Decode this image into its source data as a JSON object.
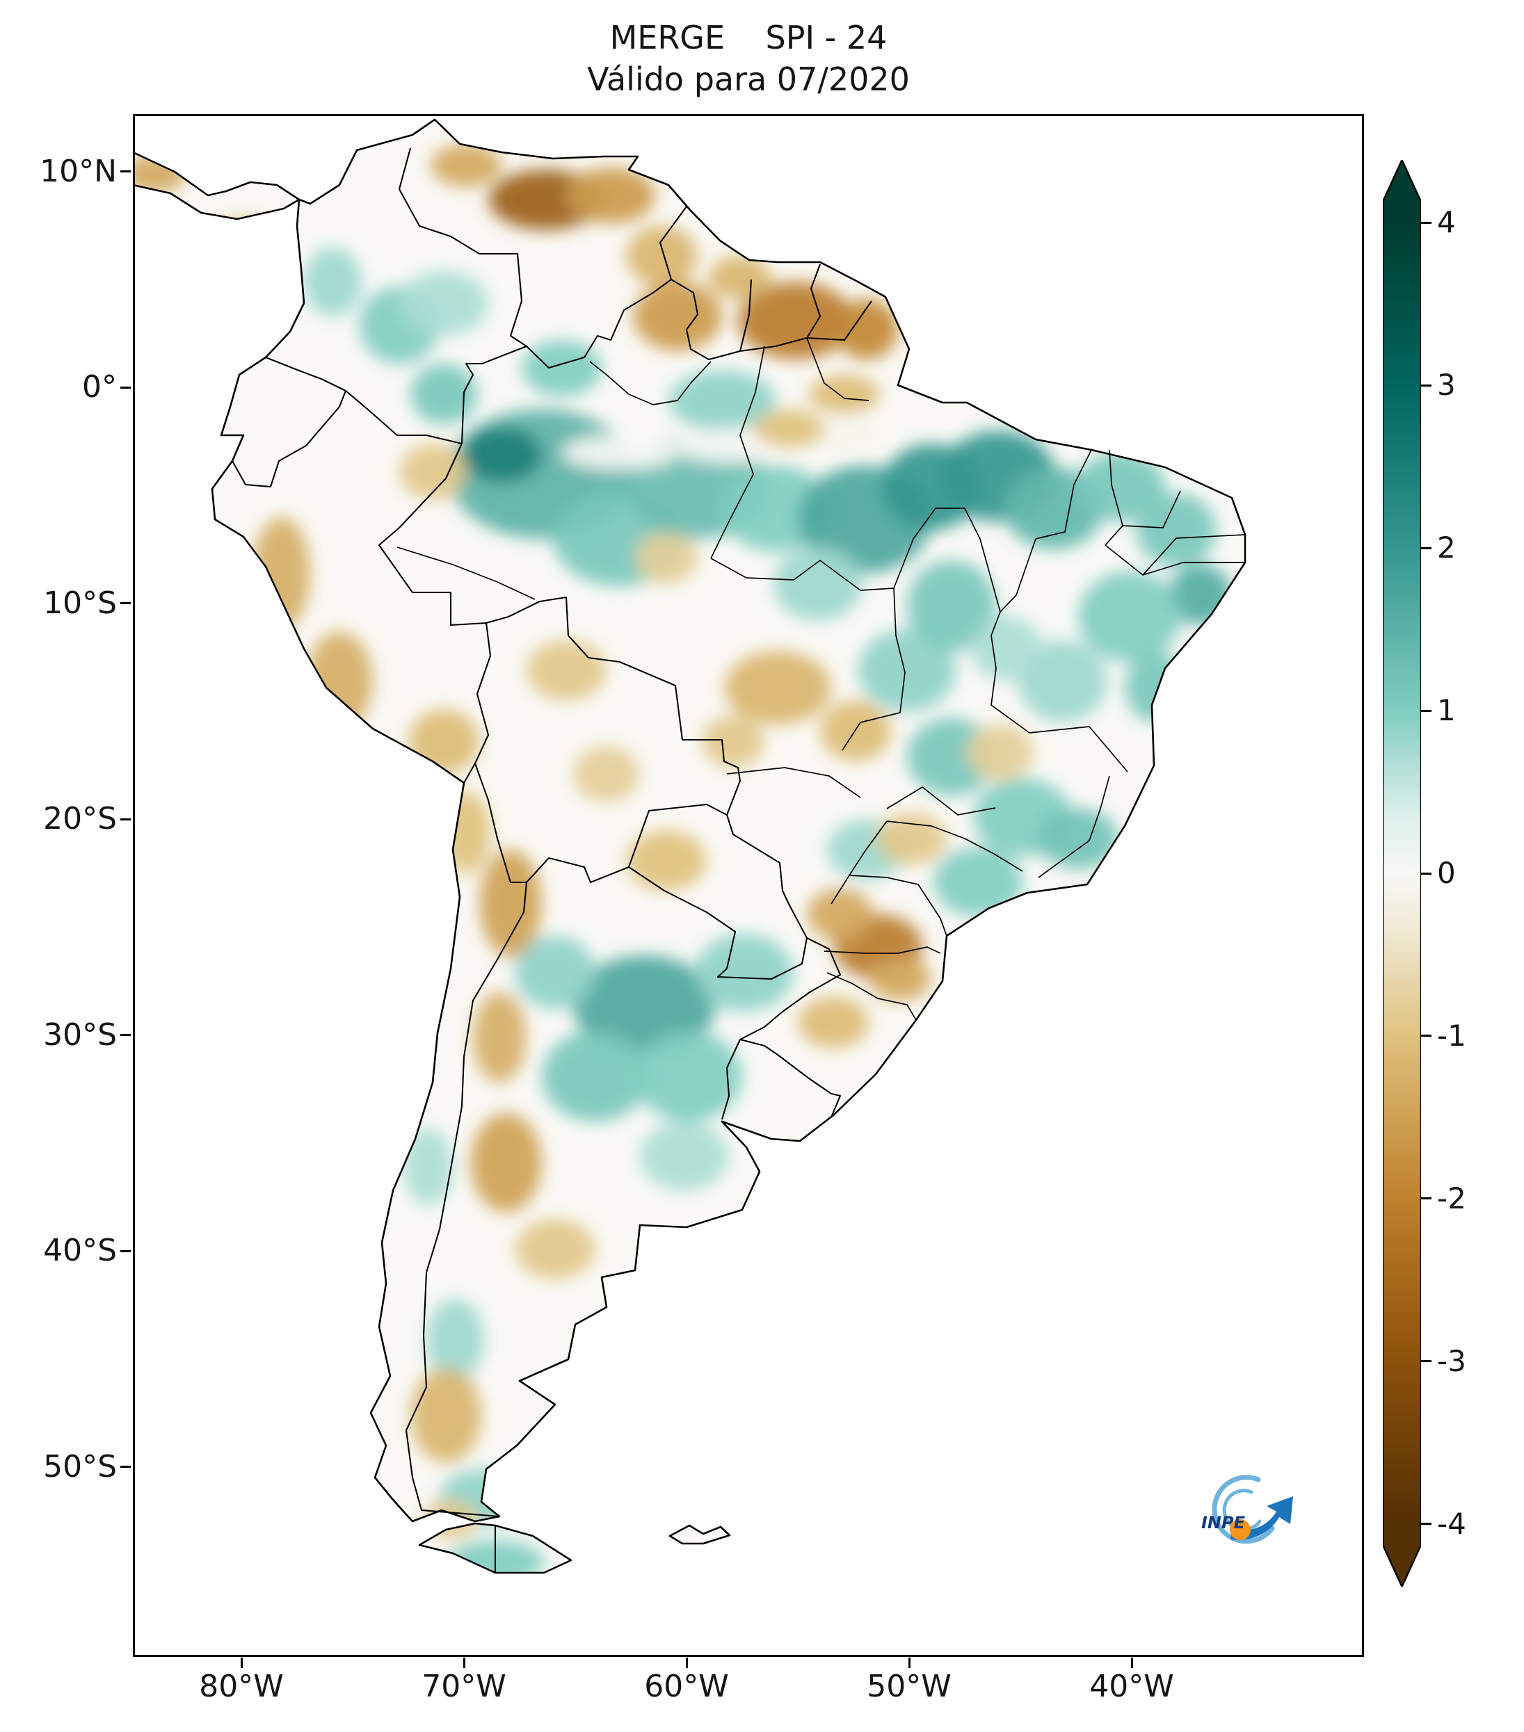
{
  "figure": {
    "title": "MERGE    SPI - 24",
    "subtitle": "Válido para 07/2020"
  },
  "axes": {
    "x_ticks": [
      {
        "label": "80°W",
        "lon": -80
      },
      {
        "label": "70°W",
        "lon": -70
      },
      {
        "label": "60°W",
        "lon": -60
      },
      {
        "label": "50°W",
        "lon": -50
      },
      {
        "label": "40°W",
        "lon": -40
      }
    ],
    "y_ticks": [
      {
        "label": "10°N",
        "lat": 10
      },
      {
        "label": "0°",
        "lat": 0
      },
      {
        "label": "10°S",
        "lat": -10
      },
      {
        "label": "20°S",
        "lat": -20
      },
      {
        "label": "30°S",
        "lat": -30
      },
      {
        "label": "40°S",
        "lat": -40
      },
      {
        "label": "50°S",
        "lat": -50
      }
    ]
  },
  "colorbar": {
    "ticks": [
      {
        "label": "4",
        "value": 4
      },
      {
        "label": "3",
        "value": 3
      },
      {
        "label": "2",
        "value": 2
      },
      {
        "label": "1",
        "value": 1
      },
      {
        "label": "0",
        "value": 0
      },
      {
        "label": "-1",
        "value": -1
      },
      {
        "label": "-2",
        "value": -2
      },
      {
        "label": "-3",
        "value": -3
      },
      {
        "label": "-4",
        "value": -4
      }
    ],
    "vmin": -4,
    "vmax": 4,
    "extend": "both",
    "colormap": "BrBG",
    "scale": [
      [
        -4,
        "#543005"
      ],
      [
        -3,
        "#8c510a"
      ],
      [
        -2,
        "#bf812d"
      ],
      [
        -1,
        "#dfc27d"
      ],
      [
        -0.35,
        "#f0e9d4"
      ],
      [
        0,
        "#f8f8f5"
      ],
      [
        0.35,
        "#def0ec"
      ],
      [
        1,
        "#80cdc1"
      ],
      [
        2,
        "#35978f"
      ],
      [
        3,
        "#01665e"
      ],
      [
        4,
        "#003c30"
      ]
    ]
  },
  "logo": {
    "text": "INPE"
  },
  "chart_data": {
    "type": "heatmap",
    "title": "MERGE    SPI - 24",
    "subtitle": "Válido para 07/2020",
    "product": "MERGE",
    "index": "SPI-24",
    "valid_for": "07/2020",
    "region": "South America",
    "x_axis": {
      "label": "",
      "tick_labels": [
        "80°W",
        "70°W",
        "60°W",
        "50°W",
        "40°W"
      ]
    },
    "y_axis": {
      "label": "",
      "tick_labels": [
        "10°N",
        "0°",
        "10°S",
        "20°S",
        "30°S",
        "40°S",
        "50°S"
      ]
    },
    "colorbar": {
      "ticks": [
        4,
        3,
        2,
        1,
        0,
        -1,
        -2,
        -3,
        -4
      ],
      "range": [
        -4,
        4
      ],
      "colormap": "BrBG",
      "extend": "both"
    },
    "anomalies": [
      {
        "lon": -66.5,
        "lat": -4.0,
        "rx": 4.2,
        "ry": 3.0,
        "spi": 1.5
      },
      {
        "lon": -68.3,
        "lat": -3.1,
        "rx": 1.8,
        "ry": 1.3,
        "spi": 2.5
      },
      {
        "lon": -70.9,
        "lat": -0.3,
        "rx": 1.5,
        "ry": 1.4,
        "spi": 1.1
      },
      {
        "lon": -63.0,
        "lat": -7.0,
        "rx": 3.0,
        "ry": 2.2,
        "spi": 1.1
      },
      {
        "lon": -59.5,
        "lat": -4.6,
        "rx": 3.2,
        "ry": 2.4,
        "spi": 1.3
      },
      {
        "lon": -56.0,
        "lat": -5.6,
        "rx": 2.4,
        "ry": 2.0,
        "spi": 1.0
      },
      {
        "lon": -52.0,
        "lat": -6.1,
        "rx": 3.0,
        "ry": 2.5,
        "spi": 1.7
      },
      {
        "lon": -49.0,
        "lat": -4.6,
        "rx": 2.2,
        "ry": 2.0,
        "spi": 2.0
      },
      {
        "lon": -46.0,
        "lat": -4.1,
        "rx": 2.6,
        "ry": 2.1,
        "spi": 2.0
      },
      {
        "lon": -43.5,
        "lat": -5.6,
        "rx": 2.2,
        "ry": 1.9,
        "spi": 1.4
      },
      {
        "lon": -40.5,
        "lat": -4.6,
        "rx": 2.0,
        "ry": 1.6,
        "spi": 1.1
      },
      {
        "lon": -38.0,
        "lat": -6.6,
        "rx": 1.8,
        "ry": 1.7,
        "spi": 1.1
      },
      {
        "lon": -36.9,
        "lat": -9.6,
        "rx": 1.4,
        "ry": 1.4,
        "spi": 1.6
      },
      {
        "lon": -40.1,
        "lat": -10.6,
        "rx": 2.3,
        "ry": 2.1,
        "spi": 1.0
      },
      {
        "lon": -43.1,
        "lat": -13.6,
        "rx": 2.0,
        "ry": 1.9,
        "spi": 0.8
      },
      {
        "lon": -38.9,
        "lat": -13.9,
        "rx": 1.4,
        "ry": 1.6,
        "spi": 1.1
      },
      {
        "lon": -50.1,
        "lat": -13.1,
        "rx": 2.2,
        "ry": 1.9,
        "spi": 0.9
      },
      {
        "lon": -48.1,
        "lat": -17.1,
        "rx": 2.0,
        "ry": 1.8,
        "spi": 1.1
      },
      {
        "lon": -44.9,
        "lat": -19.9,
        "rx": 2.2,
        "ry": 1.8,
        "spi": 1.0
      },
      {
        "lon": -42.4,
        "lat": -20.9,
        "rx": 1.8,
        "ry": 1.4,
        "spi": 1.2
      },
      {
        "lon": -46.9,
        "lat": -22.9,
        "rx": 2.0,
        "ry": 1.6,
        "spi": 1.0
      },
      {
        "lon": -51.9,
        "lat": -21.4,
        "rx": 1.8,
        "ry": 1.4,
        "spi": 0.8
      },
      {
        "lon": -61.9,
        "lat": -28.6,
        "rx": 3.2,
        "ry": 2.3,
        "spi": 1.7
      },
      {
        "lon": -64.1,
        "lat": -31.9,
        "rx": 2.4,
        "ry": 2.1,
        "spi": 1.1
      },
      {
        "lon": -59.9,
        "lat": -31.9,
        "rx": 2.4,
        "ry": 2.1,
        "spi": 1.0
      },
      {
        "lon": -57.4,
        "lat": -27.1,
        "rx": 2.2,
        "ry": 1.8,
        "spi": 0.9
      },
      {
        "lon": -65.9,
        "lat": -27.1,
        "rx": 1.8,
        "ry": 1.7,
        "spi": 0.9
      },
      {
        "lon": -72.9,
        "lat": 2.9,
        "rx": 1.8,
        "ry": 1.8,
        "spi": 1.0
      },
      {
        "lon": -75.9,
        "lat": 4.9,
        "rx": 1.3,
        "ry": 1.6,
        "spi": 0.8
      },
      {
        "lon": -70.9,
        "lat": 3.9,
        "rx": 2.0,
        "ry": 1.5,
        "spi": 0.7
      },
      {
        "lon": -58.4,
        "lat": -0.6,
        "rx": 2.4,
        "ry": 1.4,
        "spi": 0.9
      },
      {
        "lon": -65.6,
        "lat": 0.9,
        "rx": 1.8,
        "ry": 1.3,
        "spi": 1.0
      },
      {
        "lon": -48.1,
        "lat": -10.1,
        "rx": 2.0,
        "ry": 2.1,
        "spi": 1.1
      },
      {
        "lon": -54.1,
        "lat": -9.1,
        "rx": 2.0,
        "ry": 1.7,
        "spi": 0.8
      },
      {
        "lon": -60.1,
        "lat": -35.6,
        "rx": 2.0,
        "ry": 1.6,
        "spi": 0.7
      },
      {
        "lon": -71.6,
        "lat": -36.1,
        "rx": 1.1,
        "ry": 1.8,
        "spi": 0.7
      },
      {
        "lon": -45.6,
        "lat": -12.1,
        "rx": 1.6,
        "ry": 1.5,
        "spi": 0.7
      },
      {
        "lon": -70.4,
        "lat": -44.1,
        "rx": 1.3,
        "ry": 1.9,
        "spi": 0.8
      },
      {
        "lon": -69.1,
        "lat": -51.4,
        "rx": 2.0,
        "ry": 1.3,
        "spi": 0.9
      },
      {
        "lon": -68.6,
        "lat": -54.4,
        "rx": 2.2,
        "ry": 1.0,
        "spi": 1.0
      },
      {
        "lon": -63.0,
        "lat": -3.0,
        "rx": 2.6,
        "ry": 0.8,
        "spi": 0.0
      },
      {
        "lon": -58.0,
        "lat": -2.7,
        "rx": 2.6,
        "ry": 0.8,
        "spi": 0.0
      },
      {
        "lon": -53.6,
        "lat": -2.1,
        "rx": 2.4,
        "ry": 0.8,
        "spi": -0.1
      },
      {
        "lon": -66.3,
        "lat": 8.7,
        "rx": 2.6,
        "ry": 1.4,
        "spi": -2.7
      },
      {
        "lon": -69.9,
        "lat": 10.3,
        "rx": 1.6,
        "ry": 1.0,
        "spi": -1.4
      },
      {
        "lon": -63.4,
        "lat": 8.9,
        "rx": 2.0,
        "ry": 1.3,
        "spi": -1.6
      },
      {
        "lon": -61.1,
        "lat": 6.1,
        "rx": 1.6,
        "ry": 1.4,
        "spi": -1.2
      },
      {
        "lon": -60.4,
        "lat": 3.3,
        "rx": 2.0,
        "ry": 1.6,
        "spi": -1.6
      },
      {
        "lon": -55.1,
        "lat": 3.1,
        "rx": 2.6,
        "ry": 1.8,
        "spi": -2.1
      },
      {
        "lon": -57.6,
        "lat": 5.1,
        "rx": 1.4,
        "ry": 1.0,
        "spi": -1.2
      },
      {
        "lon": -51.9,
        "lat": 2.7,
        "rx": 1.4,
        "ry": 1.4,
        "spi": -1.9
      },
      {
        "lon": -52.9,
        "lat": -0.3,
        "rx": 1.6,
        "ry": 0.9,
        "spi": -1.1
      },
      {
        "lon": -78.2,
        "lat": -8.6,
        "rx": 1.3,
        "ry": 2.6,
        "spi": -1.3
      },
      {
        "lon": -75.6,
        "lat": -13.6,
        "rx": 1.5,
        "ry": 2.3,
        "spi": -1.3
      },
      {
        "lon": -70.9,
        "lat": -16.4,
        "rx": 1.6,
        "ry": 1.5,
        "spi": -1.1
      },
      {
        "lon": -69.9,
        "lat": -20.6,
        "rx": 1.1,
        "ry": 1.9,
        "spi": -1.0
      },
      {
        "lon": -65.4,
        "lat": -13.1,
        "rx": 1.8,
        "ry": 1.4,
        "spi": -0.9
      },
      {
        "lon": -67.9,
        "lat": -23.9,
        "rx": 1.4,
        "ry": 2.5,
        "spi": -1.5
      },
      {
        "lon": -68.4,
        "lat": -30.1,
        "rx": 1.2,
        "ry": 2.1,
        "spi": -1.3
      },
      {
        "lon": -68.1,
        "lat": -35.9,
        "rx": 1.6,
        "ry": 2.3,
        "spi": -1.5
      },
      {
        "lon": -70.8,
        "lat": -47.6,
        "rx": 1.6,
        "ry": 2.2,
        "spi": -1.2
      },
      {
        "lon": -65.9,
        "lat": -39.9,
        "rx": 1.8,
        "ry": 1.4,
        "spi": -0.9
      },
      {
        "lon": -60.9,
        "lat": -21.9,
        "rx": 1.8,
        "ry": 1.4,
        "spi": -1.0
      },
      {
        "lon": -55.9,
        "lat": -13.9,
        "rx": 2.4,
        "ry": 1.7,
        "spi": -1.2
      },
      {
        "lon": -52.4,
        "lat": -15.9,
        "rx": 1.6,
        "ry": 1.4,
        "spi": -1.1
      },
      {
        "lon": -57.9,
        "lat": -16.4,
        "rx": 1.4,
        "ry": 1.2,
        "spi": -0.9
      },
      {
        "lon": -51.4,
        "lat": -25.9,
        "rx": 2.0,
        "ry": 1.5,
        "spi": -2.1
      },
      {
        "lon": -53.1,
        "lat": -24.4,
        "rx": 1.5,
        "ry": 1.2,
        "spi": -1.4
      },
      {
        "lon": -50.4,
        "lat": -27.4,
        "rx": 1.4,
        "ry": 1.0,
        "spi": -1.4
      },
      {
        "lon": -53.4,
        "lat": -29.4,
        "rx": 1.6,
        "ry": 1.2,
        "spi": -1.1
      },
      {
        "lon": -49.9,
        "lat": -20.9,
        "rx": 1.6,
        "ry": 1.2,
        "spi": -0.9
      },
      {
        "lon": -45.9,
        "lat": -16.9,
        "rx": 1.5,
        "ry": 1.3,
        "spi": -0.8
      },
      {
        "lon": -60.9,
        "lat": -7.9,
        "rx": 1.4,
        "ry": 1.2,
        "spi": -0.8
      },
      {
        "lon": -55.4,
        "lat": -1.9,
        "rx": 1.6,
        "ry": 0.9,
        "spi": -1.0
      },
      {
        "lon": -71.4,
        "lat": -3.9,
        "rx": 1.5,
        "ry": 1.3,
        "spi": -0.9
      },
      {
        "lon": -79.9,
        "lat": 6.9,
        "rx": 1.8,
        "ry": 0.9,
        "spi": -1.2
      },
      {
        "lon": -83.9,
        "lat": 9.9,
        "rx": 1.4,
        "ry": 0.9,
        "spi": -1.4
      },
      {
        "lon": -63.6,
        "lat": -17.9,
        "rx": 1.5,
        "ry": 1.3,
        "spi": -0.8
      },
      {
        "lon": -70.6,
        "lat": -52.4,
        "rx": 1.2,
        "ry": 0.9,
        "spi": -0.9
      }
    ]
  }
}
